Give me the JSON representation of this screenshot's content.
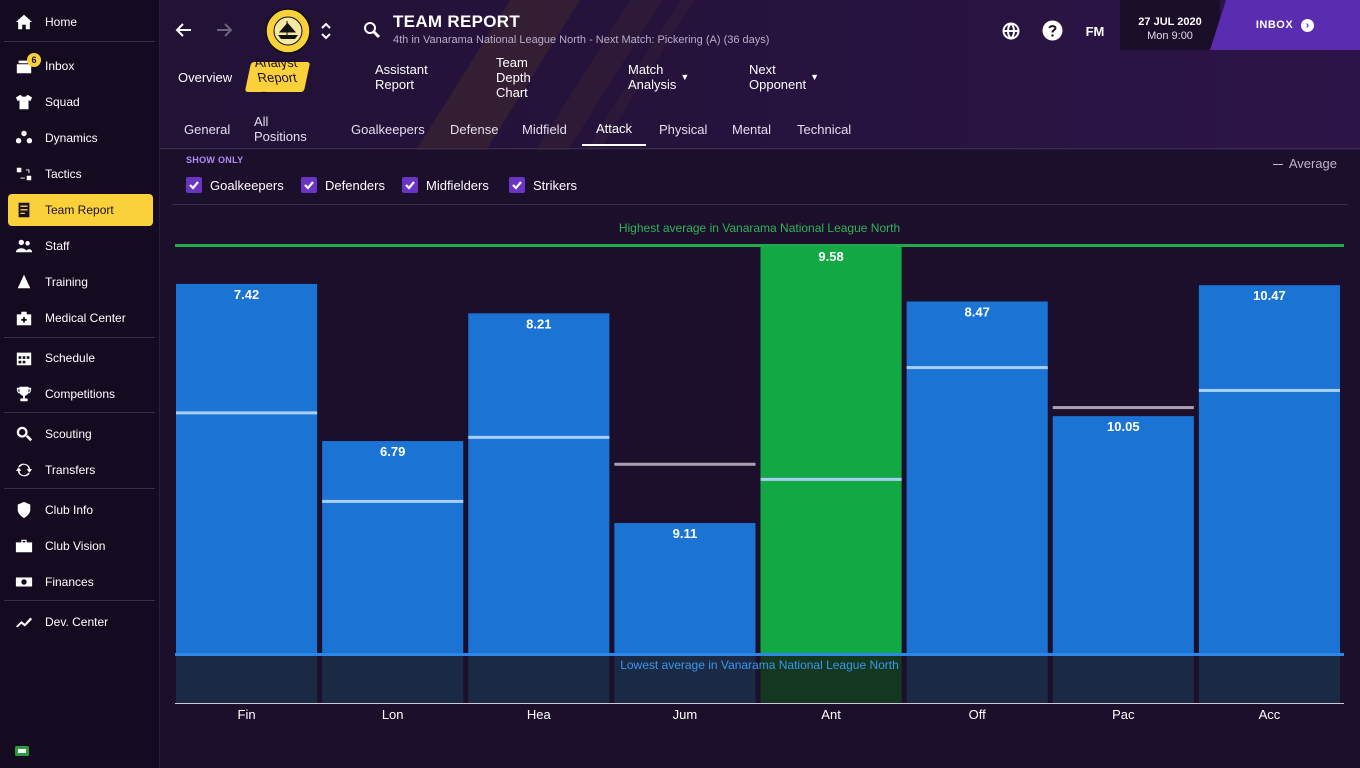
{
  "sidebar": {
    "items": [
      {
        "label": "Home",
        "icon": "home-icon"
      },
      {
        "label": "Inbox",
        "icon": "inbox-icon",
        "badge": "6"
      },
      {
        "label": "Squad",
        "icon": "shirt-icon"
      },
      {
        "label": "Dynamics",
        "icon": "dynamics-icon"
      },
      {
        "label": "Tactics",
        "icon": "tactics-icon"
      },
      {
        "label": "Team Report",
        "icon": "report-icon"
      },
      {
        "label": "Staff",
        "icon": "staff-icon"
      },
      {
        "label": "Training",
        "icon": "training-icon"
      },
      {
        "label": "Medical Center",
        "icon": "medical-icon"
      },
      {
        "label": "Schedule",
        "icon": "calendar-icon"
      },
      {
        "label": "Competitions",
        "icon": "trophy-icon"
      },
      {
        "label": "Scouting",
        "icon": "scouting-icon"
      },
      {
        "label": "Transfers",
        "icon": "transfers-icon"
      },
      {
        "label": "Club Info",
        "icon": "shield-icon"
      },
      {
        "label": "Club Vision",
        "icon": "briefcase-icon"
      },
      {
        "label": "Finances",
        "icon": "finances-icon"
      },
      {
        "label": "Dev. Center",
        "icon": "dev-center-icon"
      }
    ]
  },
  "header": {
    "title": "TEAM REPORT",
    "subtitle": "4th in Vanarama National League North - Next Match: Pickering (A) (36 days)",
    "fm_label": "FM",
    "date": "27 JUL 2020",
    "time": "Mon 9:00",
    "inbox_label": "INBOX",
    "club_badge_text": "BOSTON UNITED · THE PILGRIMS"
  },
  "tabs": {
    "primary": [
      {
        "label": "Overview",
        "dropdown": false
      },
      {
        "label": "Analyst Report",
        "dropdown": true
      },
      {
        "label": "Assistant Report",
        "dropdown": false
      },
      {
        "label": "Team Depth Chart",
        "dropdown": false
      },
      {
        "label": "Match Analysis",
        "dropdown": true
      },
      {
        "label": "Next Opponent",
        "dropdown": true
      }
    ],
    "secondary": [
      "General",
      "All Positions",
      "Goalkeepers",
      "Defense",
      "Midfield",
      "Attack",
      "Physical",
      "Mental",
      "Technical"
    ]
  },
  "filters": {
    "show_only_label": "SHOW ONLY",
    "checkboxes": [
      {
        "label": "Goalkeepers",
        "checked": true
      },
      {
        "label": "Defenders",
        "checked": true
      },
      {
        "label": "Midfielders",
        "checked": true
      },
      {
        "label": "Strikers",
        "checked": true
      }
    ],
    "legend_label": "Average"
  },
  "colors": {
    "accent_yellow": "#fbd13b",
    "bar_blue": "#1b73d4",
    "bar_green": "#12a843",
    "line_green": "#21a84a",
    "line_blue": "#2b86e6",
    "checkbox_purple": "#6a35c2",
    "inbox_purple": "#5a2cb0"
  },
  "chart_data": {
    "type": "bar",
    "title": "",
    "top_label": "Highest average in Vanarama National League North",
    "bottom_label": "Lowest average in Vanarama National League North",
    "categories": [
      "Fin",
      "Lon",
      "Hea",
      "Jum",
      "Ant",
      "Off",
      "Pac",
      "Acc"
    ],
    "values": [
      7.42,
      6.79,
      8.21,
      9.11,
      9.58,
      8.47,
      10.05,
      10.47
    ],
    "relative_strength": [
      0.907,
      0.522,
      0.835,
      0.321,
      1.0,
      0.864,
      0.583,
      0.904
    ],
    "average_relative": [
      0.591,
      0.374,
      0.531,
      0.465,
      0.428,
      0.702,
      0.604,
      0.646
    ],
    "highlighted": [
      false,
      false,
      false,
      false,
      true,
      false,
      false,
      false
    ],
    "average_above_bar": [
      false,
      false,
      false,
      true,
      false,
      false,
      true,
      false
    ],
    "ylim": [
      0,
      1
    ],
    "legend": "Average"
  }
}
